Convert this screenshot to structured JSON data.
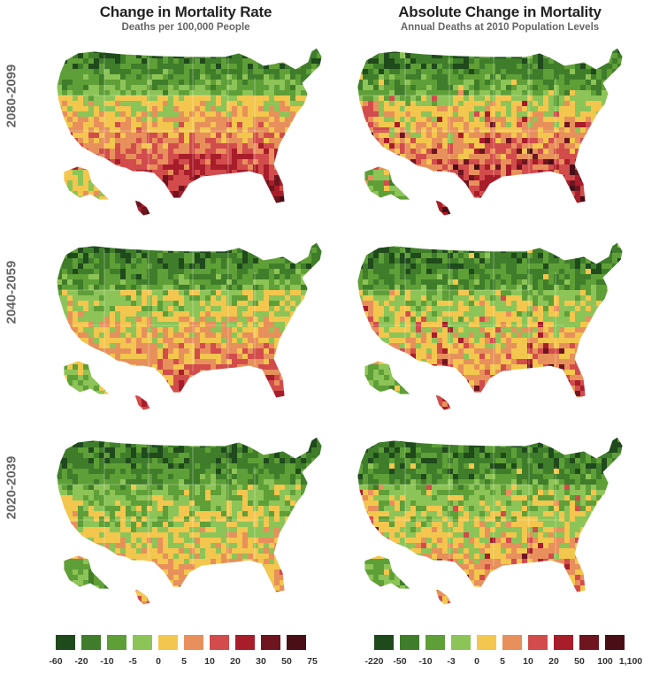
{
  "columns": [
    {
      "title": "Change in Mortality Rate",
      "subtitle": "Deaths per 100,000 People"
    },
    {
      "title": "Absolute Change in Mortality",
      "subtitle": "Annual Deaths at 2010 Population Levels"
    }
  ],
  "rows": [
    {
      "label": "2080-2099",
      "left_level": 7.2,
      "right_level": 6.4
    },
    {
      "label": "2040-2059",
      "left_level": 5.6,
      "right_level": 5.2
    },
    {
      "label": "2020-2039",
      "left_level": 4.4,
      "right_level": 4.6
    }
  ],
  "legend_colors": [
    "#1f4a1c",
    "#3f7d2a",
    "#5f9f37",
    "#8dc457",
    "#f3c64e",
    "#e8905b",
    "#d24c4c",
    "#a81d2a",
    "#6e1520",
    "#4a0f16"
  ],
  "legends": [
    {
      "labels": [
        "-60",
        "-20",
        "-10",
        "-5",
        "0",
        "5",
        "10",
        "20",
        "30",
        "50",
        "75"
      ]
    },
    {
      "labels": [
        "-220",
        "-50",
        "-10",
        "-3",
        "0",
        "5",
        "10",
        "20",
        "50",
        "100",
        "1,100"
      ]
    }
  ]
}
